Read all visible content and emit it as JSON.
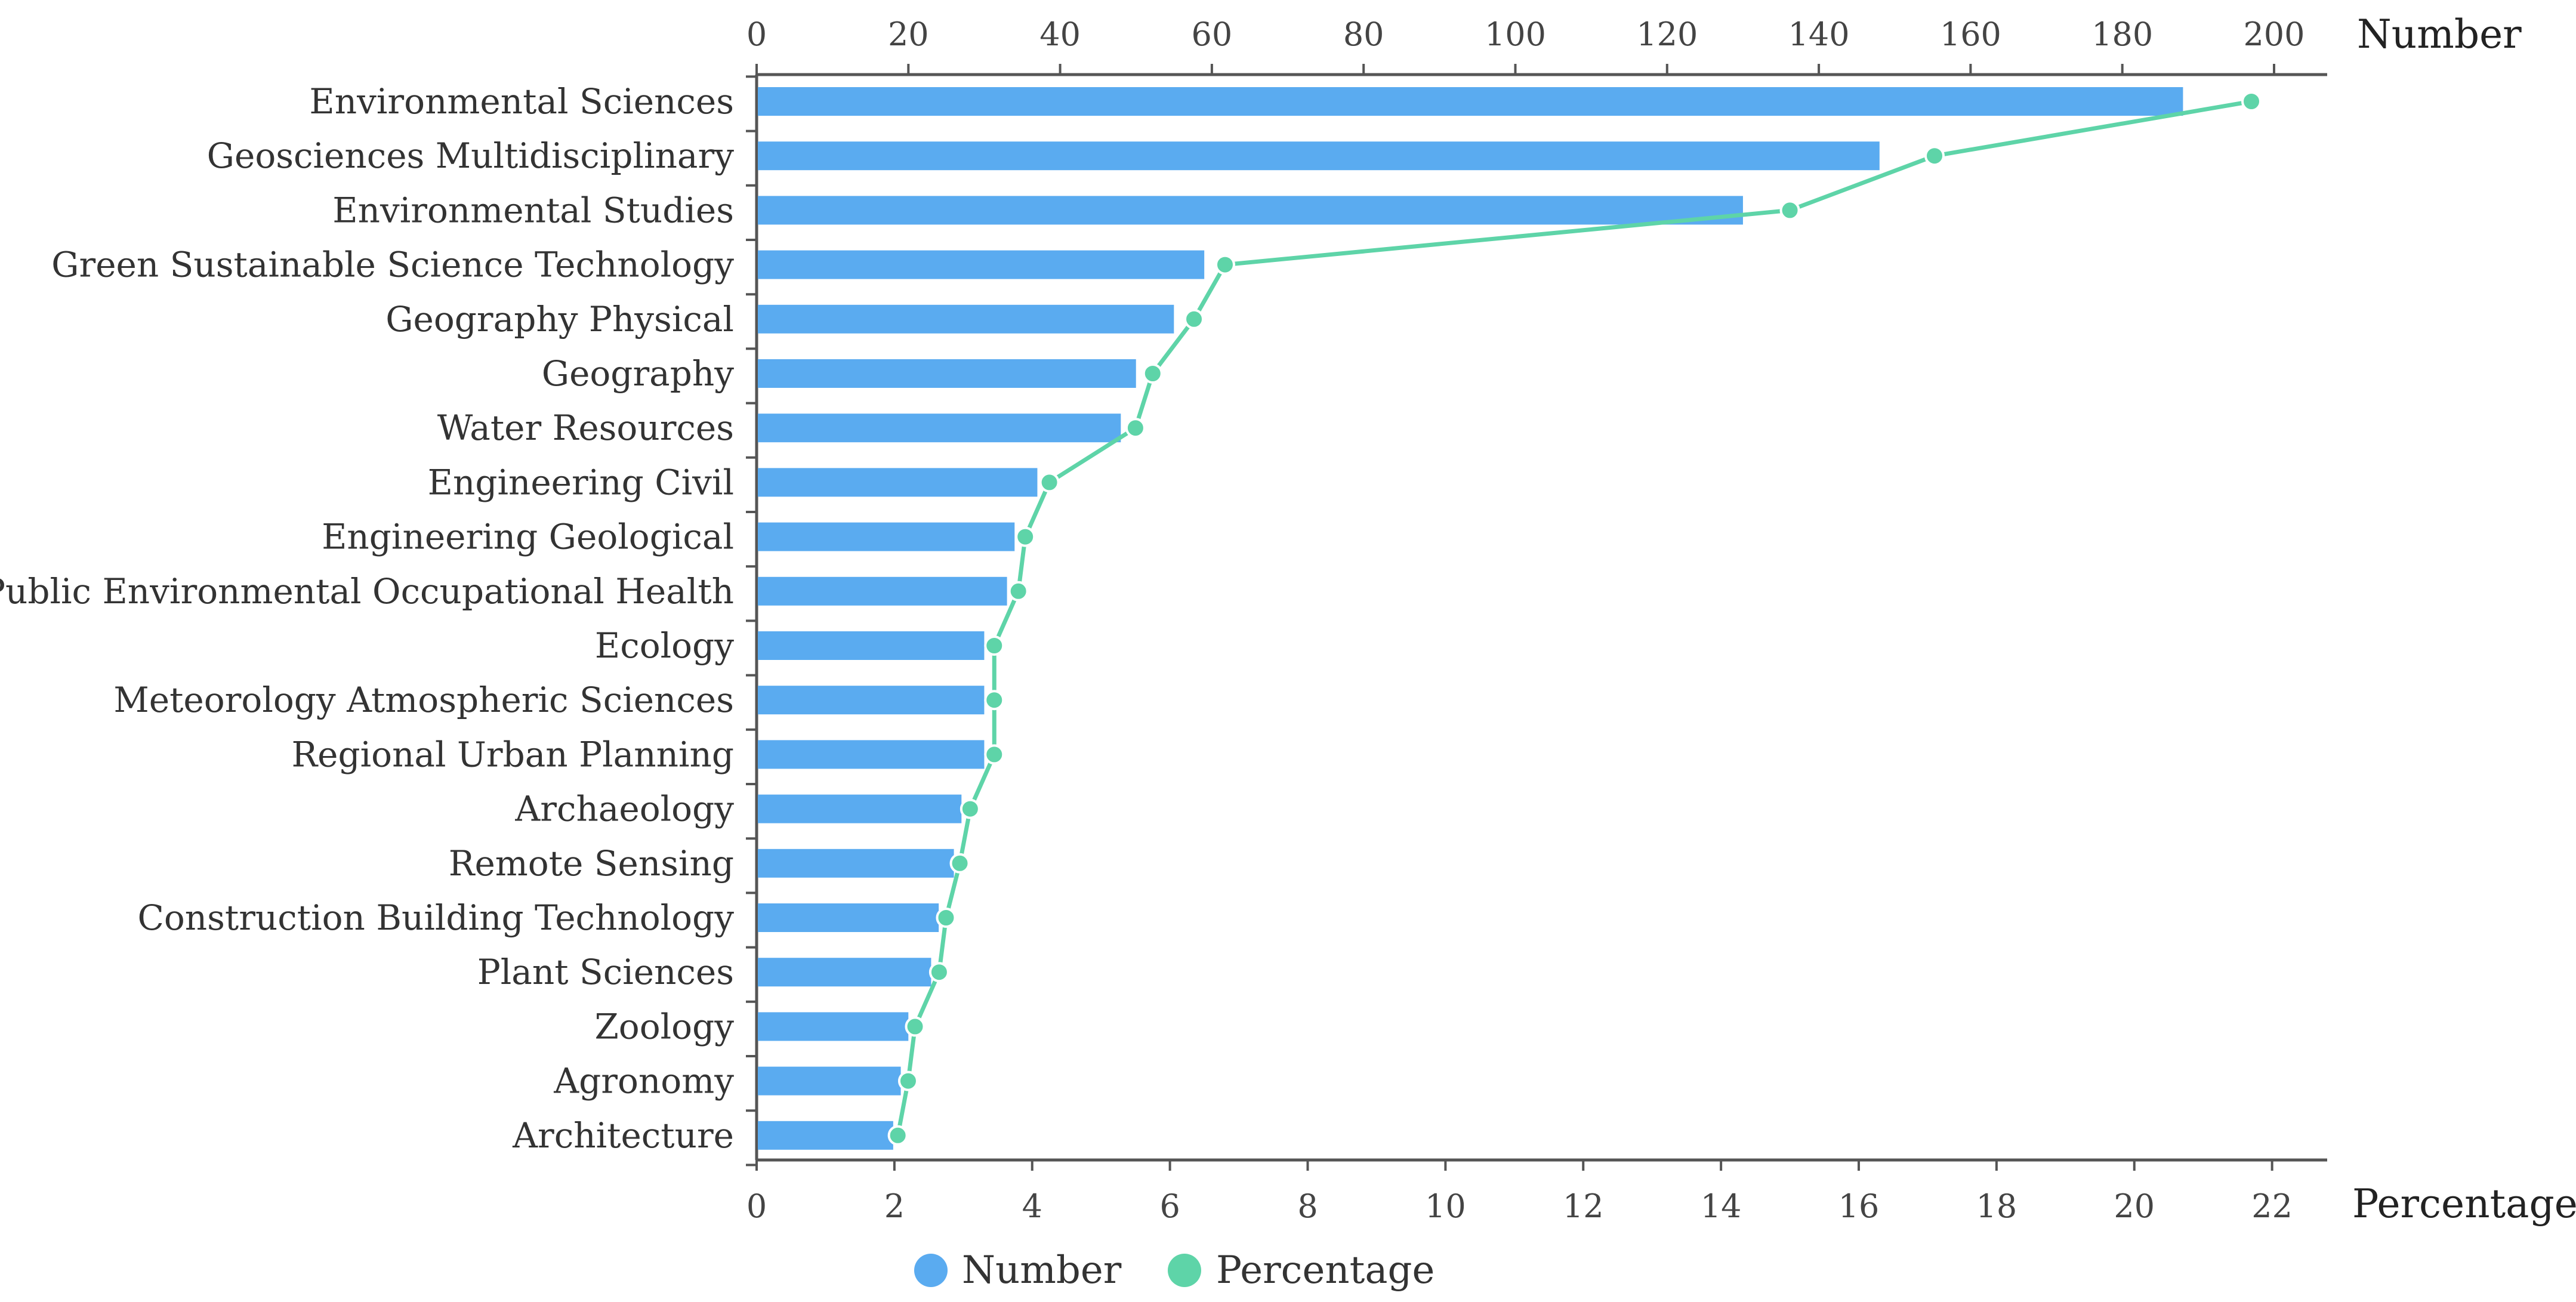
{
  "chart_data": {
    "type": "bar",
    "categories": [
      "Environmental Sciences",
      "Geosciences Multidisciplinary",
      "Environmental Studies",
      "Green Sustainable Science Technology",
      "Geography Physical",
      "Geography",
      "Water Resources",
      "Engineering Civil",
      "Engineering Geological",
      "Public Environmental Occupational Health",
      "Ecology",
      "Meteorology Atmospheric Sciences",
      "Regional Urban Planning",
      "Archaeology",
      "Remote Sensing",
      "Construction Building Technology",
      "Plant Sciences",
      "Zoology",
      "Agronomy",
      "Architecture"
    ],
    "series": [
      {
        "name": "Number",
        "axis": "top",
        "type": "bar",
        "color": "#5aabf0",
        "values": [
          188,
          148,
          130,
          59,
          55,
          50,
          48,
          37,
          34,
          33,
          30,
          30,
          30,
          27,
          26,
          24,
          23,
          20,
          19,
          18
        ]
      },
      {
        "name": "Percentage",
        "axis": "bottom",
        "type": "line",
        "color": "#5ed4a8",
        "values": [
          21.7,
          17.1,
          15.0,
          6.8,
          6.35,
          5.75,
          5.5,
          4.25,
          3.9,
          3.8,
          3.45,
          3.45,
          3.45,
          3.1,
          2.95,
          2.75,
          2.65,
          2.3,
          2.2,
          2.05
        ]
      }
    ],
    "top_axis": {
      "label": "Number",
      "ticks": [
        0,
        20,
        40,
        60,
        80,
        100,
        120,
        140,
        160,
        180,
        200
      ],
      "range": [
        0,
        207
      ]
    },
    "bottom_axis": {
      "label": "Percentage",
      "ticks": [
        0,
        2,
        4,
        6,
        8,
        10,
        12,
        14,
        16,
        18,
        20,
        22
      ],
      "range": [
        0,
        22.8
      ]
    },
    "legend": [
      {
        "label": "Number",
        "color": "#5aabf0"
      },
      {
        "label": "Percentage",
        "color": "#5ed4a8"
      }
    ],
    "legend_position": "bottom-center"
  }
}
